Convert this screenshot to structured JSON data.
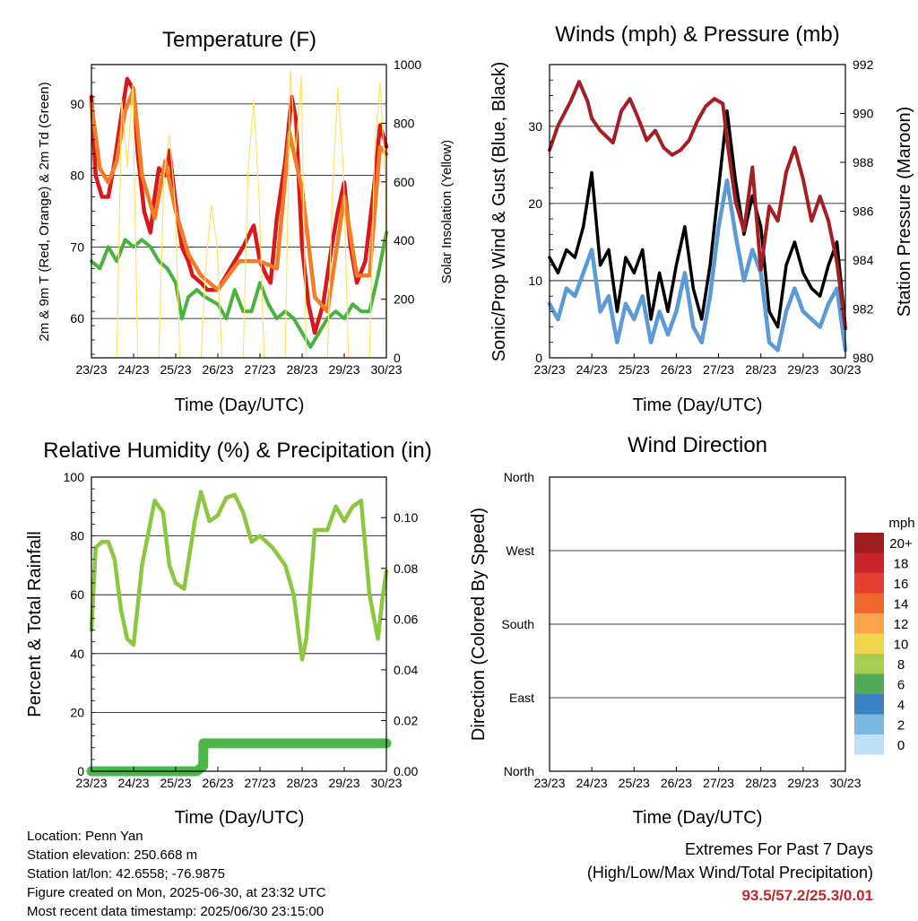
{
  "chart_data": [
    {
      "type": "line",
      "title": "Temperature (F)",
      "xlabel": "Time (Day/UTC)",
      "ylabel": "2m & 9m T (Red, Orange) & 2m Td (Green)",
      "y2label": "Solar Insolation (Yellow)",
      "categories": [
        "23/23",
        "24/23",
        "25/23",
        "26/23",
        "27/23",
        "28/23",
        "29/23",
        "30/23"
      ],
      "ylim": [
        54.5,
        95.5
      ],
      "yticks": [
        60,
        70,
        80,
        90
      ],
      "y2lim": [
        0,
        1000
      ],
      "y2ticks": [
        0,
        200,
        400,
        600,
        800,
        1000
      ],
      "series": [
        {
          "name": "2m T",
          "color": "#d7191c",
          "y2": false,
          "x": [
            0,
            0.1,
            0.25,
            0.4,
            0.55,
            0.7,
            0.85,
            1.0,
            1.1,
            1.25,
            1.4,
            1.5,
            1.6,
            1.75,
            1.85,
            2.0,
            2.15,
            2.3,
            2.4,
            2.6,
            2.75,
            3.0,
            3.3,
            3.6,
            3.85,
            4.0,
            4.15,
            4.25,
            4.4,
            4.6,
            4.75,
            4.85,
            5.0,
            5.15,
            5.3,
            5.5,
            5.7,
            5.85,
            6.0,
            6.15,
            6.3,
            6.5,
            6.7,
            6.85,
            7.0
          ],
          "y": [
            91,
            80,
            77,
            77,
            82,
            88,
            93.5,
            92,
            83,
            75,
            72,
            77,
            81,
            80,
            83.5,
            76,
            70,
            68,
            66,
            65,
            64,
            64,
            67,
            70,
            73,
            68,
            66,
            65,
            74,
            82,
            91,
            88,
            70,
            62,
            58,
            62,
            70,
            75,
            79,
            70,
            65,
            68,
            78,
            87,
            84
          ]
        },
        {
          "name": "9m T",
          "color": "#f57c27",
          "y2": false,
          "x": [
            0,
            0.2,
            0.4,
            0.6,
            0.8,
            1.0,
            1.2,
            1.5,
            1.75,
            2.0,
            2.3,
            2.6,
            3.0,
            3.5,
            4.0,
            4.4,
            4.7,
            5.0,
            5.3,
            5.6,
            6.0,
            6.3,
            6.6,
            6.85,
            7.0
          ],
          "y": [
            90,
            81,
            79,
            82,
            89,
            92,
            80,
            74,
            82,
            75,
            69,
            66,
            64,
            68,
            68,
            67,
            86,
            78,
            63,
            61,
            77,
            66,
            66,
            84,
            83
          ]
        },
        {
          "name": "2m Td",
          "color": "#49b33f",
          "y2": false,
          "x": [
            0,
            0.2,
            0.4,
            0.6,
            0.8,
            1.0,
            1.2,
            1.4,
            1.6,
            1.8,
            2.0,
            2.15,
            2.3,
            2.5,
            2.7,
            3.0,
            3.2,
            3.4,
            3.6,
            3.8,
            4.0,
            4.2,
            4.4,
            4.6,
            4.8,
            5.0,
            5.2,
            5.4,
            5.6,
            5.8,
            6.0,
            6.2,
            6.4,
            6.6,
            6.8,
            7.0
          ],
          "y": [
            68,
            67,
            70,
            68,
            71,
            70,
            71,
            70,
            68,
            67,
            65,
            60,
            63,
            64,
            63,
            62,
            60,
            64,
            61,
            61,
            65,
            62,
            60,
            61,
            60,
            58,
            56,
            58,
            60,
            61,
            60,
            62,
            61,
            61,
            66,
            72
          ]
        },
        {
          "name": "Solar Insolation",
          "color": "#fde36a",
          "y2": true,
          "x": [
            0,
            0.6,
            0.72,
            0.85,
            0.98,
            1.1,
            1.6,
            1.72,
            1.85,
            1.98,
            2.1,
            2.6,
            2.72,
            2.85,
            2.98,
            3.1,
            3.6,
            3.72,
            3.85,
            3.98,
            4.1,
            4.6,
            4.72,
            4.85,
            4.98,
            5.1,
            5.6,
            5.72,
            5.85,
            5.98,
            6.1,
            6.6,
            6.72,
            6.85,
            6.98,
            7.0
          ],
          "y": [
            0,
            0,
            880,
            650,
            930,
            0,
            0,
            620,
            760,
            540,
            0,
            0,
            320,
            520,
            380,
            0,
            0,
            640,
            880,
            540,
            0,
            0,
            980,
            700,
            960,
            0,
            0,
            560,
            920,
            640,
            0,
            0,
            700,
            940,
            600,
            0
          ]
        }
      ]
    },
    {
      "type": "line",
      "title": "Winds (mph) & Pressure (mb)",
      "xlabel": "Time (Day/UTC)",
      "ylabel": "Sonic/Prop Wind & Gust (Blue, Black)",
      "y2label": "Station Pressure (Maroon)",
      "categories": [
        "23/23",
        "24/23",
        "25/23",
        "26/23",
        "27/23",
        "28/23",
        "29/23",
        "30/23"
      ],
      "ylim": [
        0,
        38
      ],
      "yticks": [
        0,
        10,
        20,
        30
      ],
      "y2lim": [
        980,
        992
      ],
      "y2ticks": [
        980,
        982,
        984,
        986,
        988,
        990,
        992
      ],
      "series": [
        {
          "name": "Gust",
          "color": "#000000",
          "y2": false,
          "x": [
            0,
            0.2,
            0.4,
            0.6,
            0.8,
            1.0,
            1.2,
            1.4,
            1.6,
            1.8,
            2.0,
            2.2,
            2.4,
            2.6,
            2.8,
            3.0,
            3.2,
            3.4,
            3.6,
            3.8,
            4.0,
            4.2,
            4.4,
            4.6,
            4.8,
            5.0,
            5.2,
            5.4,
            5.6,
            5.8,
            6.0,
            6.2,
            6.4,
            6.6,
            6.8,
            7.0
          ],
          "y": [
            13,
            11,
            14,
            13,
            17,
            24,
            12,
            14,
            6,
            13,
            11,
            14,
            5,
            11,
            6,
            12,
            17,
            9,
            5,
            12,
            22,
            32,
            23,
            16,
            21,
            17,
            6,
            4,
            12,
            15,
            11,
            9,
            8,
            12,
            15,
            4
          ]
        },
        {
          "name": "Wind",
          "color": "#5b9bd5",
          "y2": false,
          "x": [
            0,
            0.2,
            0.4,
            0.6,
            0.8,
            1.0,
            1.2,
            1.4,
            1.6,
            1.8,
            2.0,
            2.2,
            2.4,
            2.6,
            2.8,
            3.0,
            3.2,
            3.4,
            3.6,
            3.8,
            4.0,
            4.2,
            4.4,
            4.6,
            4.8,
            5.0,
            5.2,
            5.4,
            5.6,
            5.8,
            6.0,
            6.2,
            6.4,
            6.6,
            6.8,
            7.0
          ],
          "y": [
            7,
            5,
            9,
            8,
            11,
            14,
            6,
            8,
            2,
            7,
            5,
            8,
            2,
            6,
            3,
            6,
            11,
            4,
            2,
            8,
            17,
            23,
            16,
            10,
            14,
            11,
            2,
            1,
            6,
            9,
            6,
            5,
            4,
            7,
            9,
            1
          ]
        },
        {
          "name": "Station Pressure",
          "color": "#a31f24",
          "y2": true,
          "x": [
            0,
            0.2,
            0.5,
            0.7,
            0.9,
            1.0,
            1.2,
            1.5,
            1.7,
            1.9,
            2.1,
            2.3,
            2.5,
            2.7,
            2.9,
            3.1,
            3.3,
            3.5,
            3.7,
            3.9,
            4.1,
            4.2,
            4.4,
            4.6,
            4.8,
            5.0,
            5.2,
            5.4,
            5.6,
            5.8,
            6.0,
            6.2,
            6.4,
            6.6,
            6.8,
            7.0
          ],
          "y": [
            988.5,
            989.5,
            990.5,
            991.3,
            990.5,
            989.8,
            989.3,
            988.8,
            990.1,
            990.6,
            989.8,
            988.9,
            989.3,
            988.6,
            988.3,
            988.5,
            988.9,
            989.7,
            990.3,
            990.6,
            990.4,
            988.9,
            986.4,
            985.2,
            987.8,
            983.6,
            986.2,
            985.6,
            987.6,
            988.6,
            987.3,
            985.6,
            986.6,
            985.6,
            983.9,
            981.2
          ]
        }
      ]
    },
    {
      "type": "line",
      "title": "Relative Humidity (%) & Precipitation (in)",
      "xlabel": "Time (Day/UTC)",
      "ylabel": "Percent & Total Rainfall",
      "categories": [
        "23/23",
        "24/23",
        "25/23",
        "26/23",
        "27/23",
        "28/23",
        "29/23",
        "30/23"
      ],
      "ylim": [
        0,
        100
      ],
      "yticks": [
        0,
        20,
        40,
        60,
        80,
        100
      ],
      "y2lim": [
        0,
        0.116
      ],
      "y2ticks": [
        "0.00",
        "0.02",
        "0.04",
        "0.06",
        "0.08",
        "0.10"
      ],
      "series": [
        {
          "name": "Relative Humidity",
          "color": "#8dc63f",
          "y2": false,
          "x": [
            0,
            0.1,
            0.25,
            0.4,
            0.55,
            0.7,
            0.85,
            1.0,
            1.2,
            1.5,
            1.7,
            1.85,
            2.0,
            2.2,
            2.45,
            2.6,
            2.8,
            3.0,
            3.2,
            3.4,
            3.6,
            3.8,
            4.0,
            4.3,
            4.6,
            4.8,
            5.0,
            5.1,
            5.3,
            5.6,
            5.8,
            6.0,
            6.2,
            6.4,
            6.6,
            6.8,
            6.9,
            7.0
          ],
          "y": [
            48,
            76,
            78,
            78,
            72,
            55,
            45,
            43,
            70,
            92,
            88,
            70,
            64,
            62,
            85,
            95,
            85,
            87,
            93,
            94,
            88,
            78,
            80,
            76,
            70,
            60,
            38,
            45,
            82,
            82,
            90,
            85,
            90,
            92,
            60,
            45,
            58,
            68
          ]
        },
        {
          "name": "Total Precipitation",
          "color": "#4cb749",
          "y2": true,
          "x": [
            0,
            0.5,
            1.0,
            1.5,
            2.0,
            2.5,
            2.65,
            2.66,
            3.0,
            4.0,
            5.0,
            6.0,
            7.0
          ],
          "y": [
            0,
            0,
            0,
            0,
            0,
            0,
            0.002,
            0.011,
            0.011,
            0.011,
            0.011,
            0.011,
            0.011
          ]
        }
      ]
    },
    {
      "type": "scatter",
      "title": "Wind Direction",
      "xlabel": "Time (Day/UTC)",
      "ylabel": "Direction (Colored By Speed)",
      "categories": [
        "23/23",
        "24/23",
        "25/23",
        "26/23",
        "27/23",
        "28/23",
        "29/23",
        "30/23"
      ],
      "ylim": [
        0,
        360
      ],
      "ytick_labels": [
        "North",
        "East",
        "South",
        "West",
        "North"
      ],
      "colorbar": {
        "title": "mph",
        "labels": [
          "20+",
          "18",
          "16",
          "14",
          "12",
          "10",
          "8",
          "6",
          "4",
          "2",
          "0"
        ],
        "colors": [
          "#9e1d1f",
          "#c9252b",
          "#e5402f",
          "#f0672f",
          "#f9a34a",
          "#f0d54b",
          "#a9cd52",
          "#52a957",
          "#3b82c4",
          "#7bb7e0",
          "#bfe0f4"
        ]
      },
      "series": [
        {
          "name": "Direction",
          "x": [],
          "y": []
        }
      ]
    }
  ],
  "footer": {
    "location": "Location: Penn Yan",
    "elevation": "Station elevation: 250.668 m",
    "latlon": "Station lat/lon: 42.6558; -76.9875",
    "created": "Figure created on Mon, 2025-06-30, at 23:32 UTC",
    "recent": "Most recent data timestamp: 2025/06/30 23:15:00"
  },
  "extremes": {
    "title": "Extremes For Past 7 Days",
    "subtitle": "(High/Low/Max Wind/Total Precipitation)",
    "values": "93.5/57.2/25.3/0.01"
  }
}
